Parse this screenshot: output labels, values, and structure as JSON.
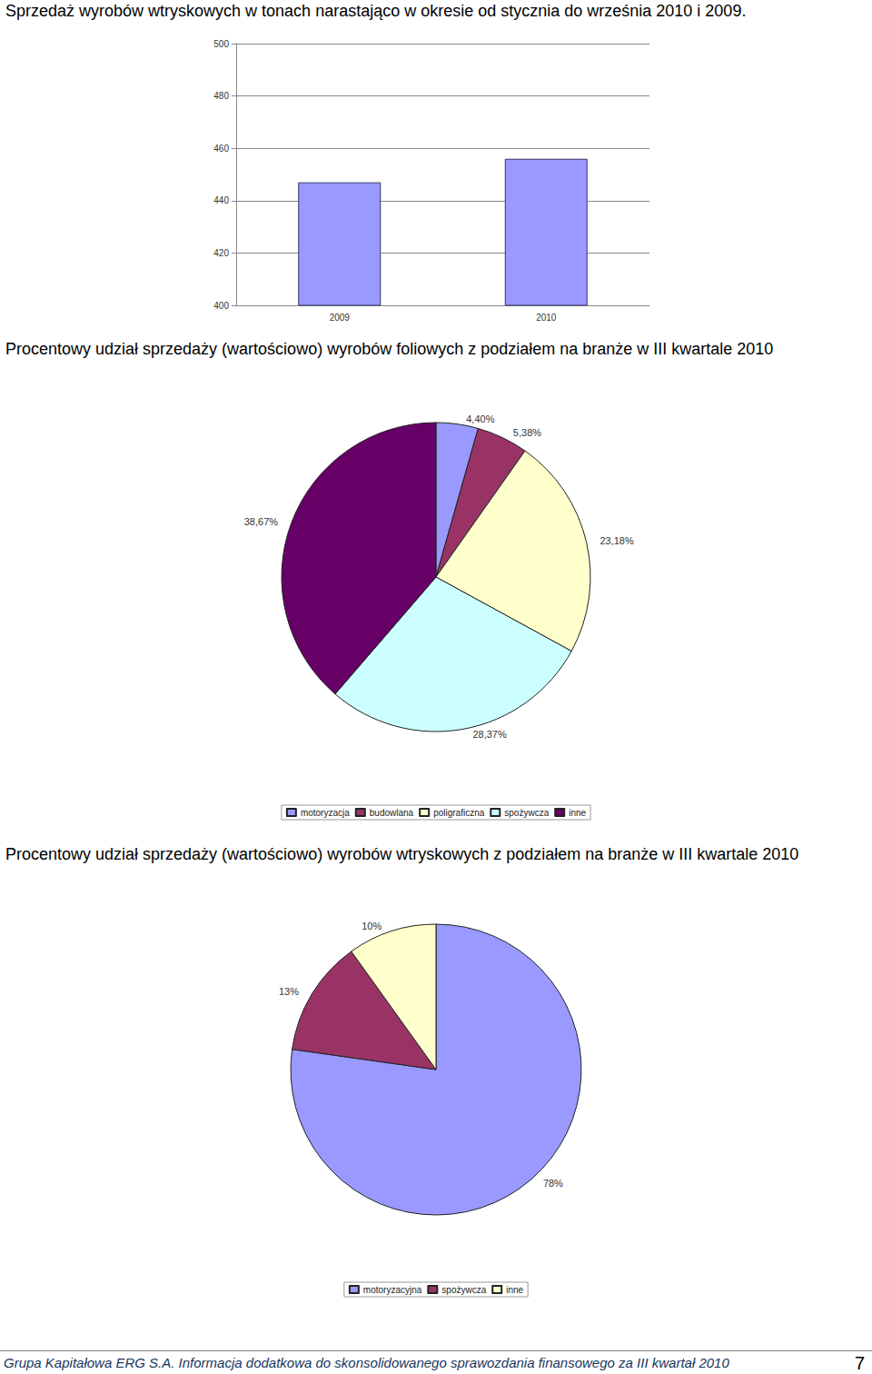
{
  "chart_data": [
    {
      "type": "bar",
      "title": "Sprzedaż wyrobów wtryskowych w tonach narastająco w okresie od stycznia do września 2010 i 2009.",
      "categories": [
        "2009",
        "2010"
      ],
      "values": [
        447,
        456
      ],
      "color": "#9999FF",
      "ylim": [
        400,
        500
      ],
      "yticks": [
        400,
        420,
        440,
        460,
        480,
        500
      ],
      "grid": true
    },
    {
      "type": "pie",
      "title": "Procentowy udział sprzedaży (wartościowo) wyrobów foliowych z podziałem na branże w III kwartale 2010",
      "categories": [
        "motoryzacja",
        "budowlana",
        "poligraficzna",
        "spożywcza",
        "inne"
      ],
      "values": [
        4.4,
        5.38,
        23.18,
        28.37,
        38.67
      ],
      "value_labels": [
        "4,40%",
        "5,38%",
        "23,18%",
        "28,37%",
        "38,67%"
      ],
      "colors": [
        "#9999FF",
        "#993366",
        "#FFFFCC",
        "#CCFFFF",
        "#660066"
      ],
      "data_labels": true,
      "legend": "bottom"
    },
    {
      "type": "pie",
      "title": "Procentowy udział sprzedaży (wartościowo) wyrobów wtryskowych z podziałem na branże w III kwartale 2010",
      "categories": [
        "motoryzacyjna",
        "spożywcza",
        "inne"
      ],
      "values": [
        78,
        13,
        10
      ],
      "value_labels": [
        "78%",
        "13%",
        "10%"
      ],
      "colors": [
        "#9999FF",
        "#993366",
        "#FFFFCC"
      ],
      "data_labels": true,
      "legend": "bottom"
    }
  ],
  "footer": {
    "text": "Grupa Kapitałowa ERG S.A. Informacja dodatkowa do skonsolidowanego sprawozdania finansowego za III kwartał 2010",
    "page": "7"
  }
}
